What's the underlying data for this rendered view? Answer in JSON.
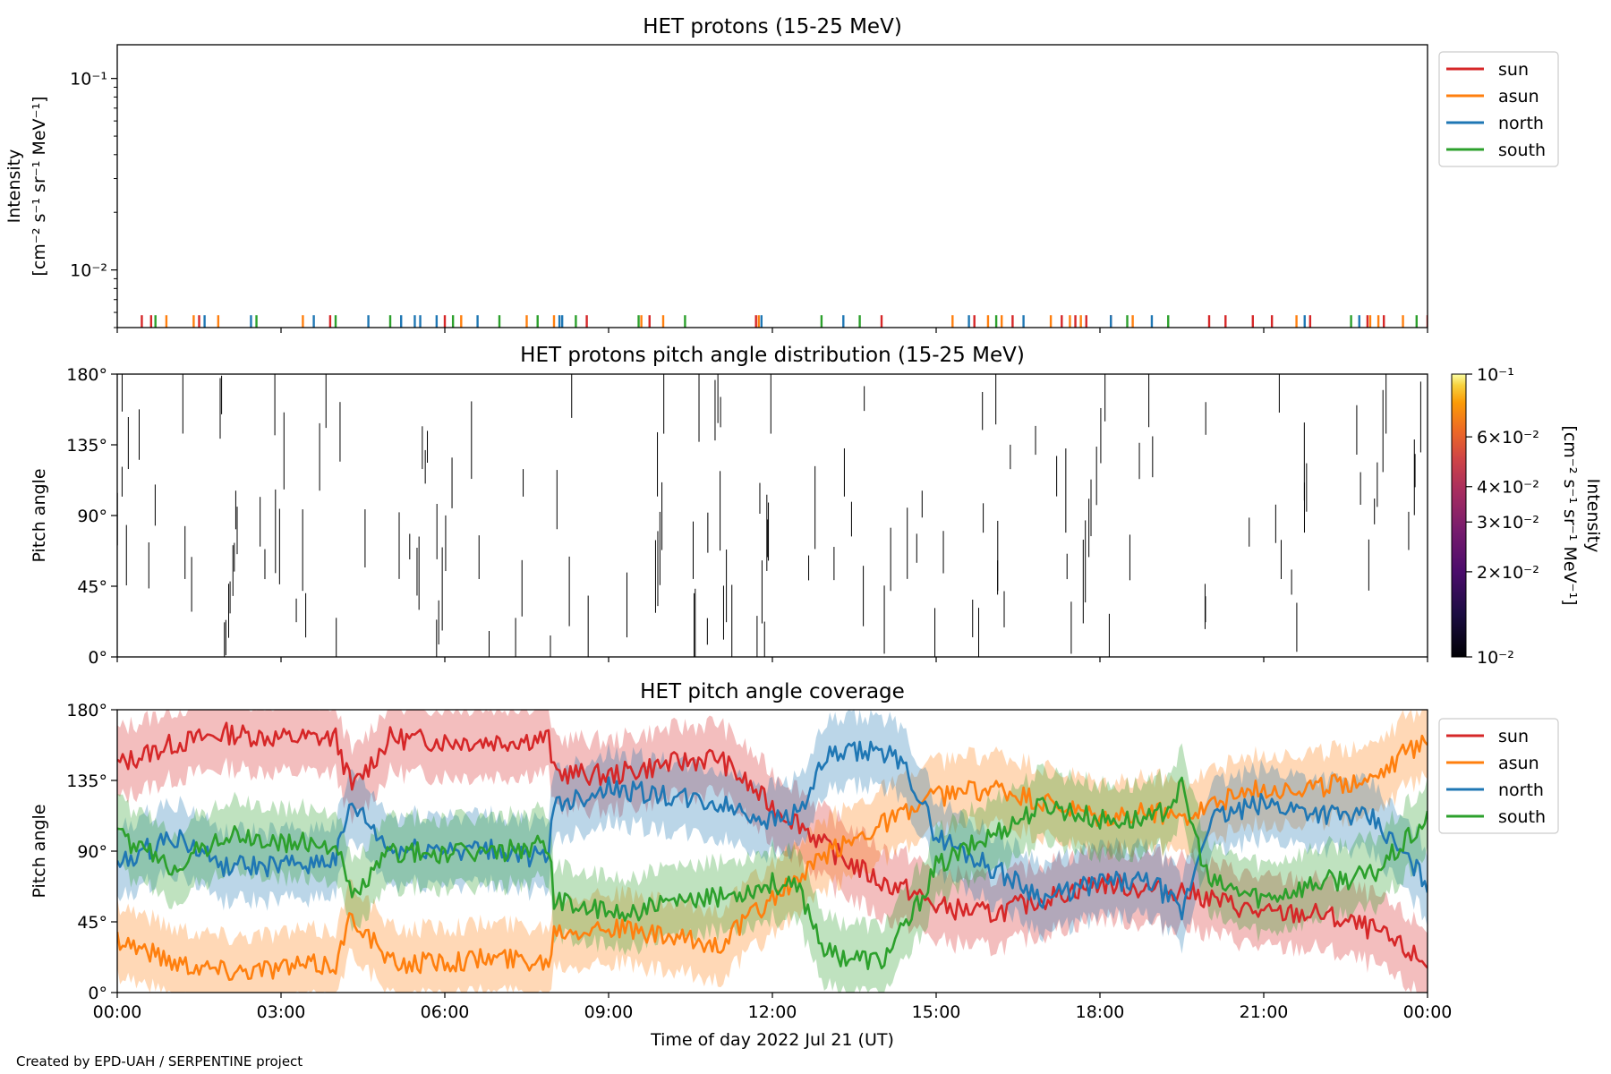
{
  "footer": {
    "credit": "Created by EPD-UAH / SERPENTINE project"
  },
  "colors": {
    "sun": "#d62728",
    "asun": "#ff7f0e",
    "north": "#1f77b4",
    "south": "#2ca02c"
  },
  "chart_data": [
    {
      "type": "line",
      "title": "HET protons (15-25 MeV)",
      "ylabel_line1": "Intensity",
      "ylabel_line2": "[cm⁻² s⁻¹ sr⁻¹ MeV⁻¹]",
      "yscale": "log",
      "ylim": [
        0.005,
        0.15
      ],
      "yticks": [
        {
          "value": 0.1,
          "label": "10⁻¹"
        },
        {
          "value": 0.01,
          "label": "10⁻²"
        }
      ],
      "legend": {
        "placement": "outside-right-top",
        "entries": [
          "sun",
          "asun",
          "north",
          "south"
        ]
      },
      "series": [
        {
          "name": "sun",
          "spikes_hours": [
            0.45,
            0.62,
            1.5,
            3.9,
            6.0,
            8.6,
            9.75,
            11.7,
            14.0,
            15.7,
            16.4,
            17.3,
            17.55,
            17.75,
            18.2,
            20.0,
            20.3,
            20.8,
            21.15,
            21.85,
            22.9,
            23.2,
            24.0
          ]
        },
        {
          "name": "asun",
          "spikes_hours": [
            0.9,
            1.4,
            1.85,
            3.4,
            6.3,
            7.5,
            8.0,
            9.6,
            10.0,
            11.75,
            15.3,
            15.95,
            16.2,
            17.1,
            17.45,
            17.65,
            18.6,
            21.6,
            22.95,
            23.1,
            23.55
          ]
        },
        {
          "name": "north",
          "spikes_hours": [
            1.6,
            2.45,
            3.6,
            4.6,
            5.2,
            5.45,
            5.55,
            5.85,
            6.6,
            8.1,
            8.15,
            11.8,
            13.3,
            15.6,
            16.6,
            18.2,
            18.95,
            21.75,
            22.75
          ]
        },
        {
          "name": "south",
          "spikes_hours": [
            0.7,
            2.55,
            4.0,
            5.0,
            6.15,
            7.0,
            7.7,
            8.4,
            9.55,
            10.4,
            12.9,
            13.6,
            16.1,
            18.5,
            19.25,
            22.6,
            23.8
          ]
        }
      ]
    },
    {
      "type": "heatmap",
      "title": "HET protons pitch angle distribution (15-25 MeV)",
      "ylabel": "Pitch angle",
      "ylim": [
        0,
        180
      ],
      "yticks": [
        "0°",
        "45°",
        "90°",
        "135°",
        "180°"
      ],
      "colorbar": {
        "label_line1": "Intensity",
        "label_line2": "[cm⁻² s⁻¹ sr⁻¹ MeV⁻¹]",
        "scale": "log",
        "range": [
          0.01,
          0.1
        ],
        "colormap": "inferno",
        "ticks": [
          {
            "value": 0.1,
            "label": "10⁻¹"
          },
          {
            "value": 0.06,
            "label": "6×10⁻²"
          },
          {
            "value": 0.04,
            "label": "4×10⁻²"
          },
          {
            "value": 0.03,
            "label": "3×10⁻²"
          },
          {
            "value": 0.02,
            "label": "2×10⁻²"
          },
          {
            "value": 0.01,
            "label": "10⁻²"
          }
        ]
      }
    },
    {
      "type": "area",
      "title": "HET pitch angle coverage",
      "ylabel": "Pitch angle",
      "xlabel": "Time of day 2022 Jul 21 (UT)",
      "ylim": [
        0,
        180
      ],
      "yticks": [
        "0°",
        "45°",
        "90°",
        "135°",
        "180°"
      ],
      "xlim_hours": [
        0,
        24
      ],
      "xticks": [
        "00:00",
        "03:00",
        "06:00",
        "09:00",
        "12:00",
        "15:00",
        "18:00",
        "21:00",
        "00:00"
      ],
      "legend": {
        "placement": "outside-right-top",
        "entries": [
          "sun",
          "asun",
          "north",
          "south"
        ]
      },
      "band_halfwidth_deg": 22,
      "series": [
        {
          "name": "sun",
          "points": [
            [
              0,
              145
            ],
            [
              1,
              158
            ],
            [
              2,
              165
            ],
            [
              3,
              162
            ],
            [
              4,
              162
            ],
            [
              4.3,
              130
            ],
            [
              5,
              162
            ],
            [
              6,
              160
            ],
            [
              7,
              160
            ],
            [
              7.9,
              162
            ],
            [
              8,
              140
            ],
            [
              9,
              138
            ],
            [
              10,
              145
            ],
            [
              11,
              150
            ],
            [
              12,
              118
            ],
            [
              12.5,
              108
            ],
            [
              13,
              92
            ],
            [
              14,
              70
            ],
            [
              14.5,
              65
            ],
            [
              15,
              55
            ],
            [
              16,
              50
            ],
            [
              17,
              60
            ],
            [
              18,
              70
            ],
            [
              19,
              65
            ],
            [
              19.5,
              65
            ],
            [
              20,
              60
            ],
            [
              21,
              50
            ],
            [
              22,
              50
            ],
            [
              23,
              40
            ],
            [
              24,
              18
            ]
          ]
        },
        {
          "name": "asun",
          "points": [
            [
              0,
              35
            ],
            [
              1,
              20
            ],
            [
              2,
              14
            ],
            [
              3,
              16
            ],
            [
              4,
              18
            ],
            [
              4.3,
              50
            ],
            [
              5,
              18
            ],
            [
              6,
              20
            ],
            [
              7,
              22
            ],
            [
              7.9,
              20
            ],
            [
              8,
              40
            ],
            [
              9,
              42
            ],
            [
              10,
              35
            ],
            [
              11,
              30
            ],
            [
              12,
              60
            ],
            [
              12.5,
              72
            ],
            [
              13,
              88
            ],
            [
              14,
              108
            ],
            [
              14.5,
              115
            ],
            [
              15,
              125
            ],
            [
              16,
              130
            ],
            [
              17,
              120
            ],
            [
              18,
              110
            ],
            [
              19,
              115
            ],
            [
              19.5,
              112
            ],
            [
              20,
              120
            ],
            [
              21,
              130
            ],
            [
              22,
              130
            ],
            [
              23,
              138
            ],
            [
              24,
              162
            ]
          ]
        },
        {
          "name": "north",
          "points": [
            [
              0,
              80
            ],
            [
              1,
              100
            ],
            [
              2,
              80
            ],
            [
              3,
              80
            ],
            [
              4,
              85
            ],
            [
              4.3,
              120
            ],
            [
              5,
              90
            ],
            [
              6,
              92
            ],
            [
              7,
              90
            ],
            [
              7.9,
              85
            ],
            [
              8,
              120
            ],
            [
              9,
              130
            ],
            [
              10,
              125
            ],
            [
              11,
              120
            ],
            [
              12,
              110
            ],
            [
              12.5,
              115
            ],
            [
              13,
              150
            ],
            [
              14,
              155
            ],
            [
              14.5,
              140
            ],
            [
              15,
              100
            ],
            [
              16,
              80
            ],
            [
              17,
              60
            ],
            [
              18,
              70
            ],
            [
              19,
              70
            ],
            [
              19.5,
              50
            ],
            [
              20,
              110
            ],
            [
              21,
              120
            ],
            [
              22,
              115
            ],
            [
              23,
              110
            ],
            [
              24,
              70
            ]
          ]
        },
        {
          "name": "south",
          "points": [
            [
              0,
              100
            ],
            [
              1,
              80
            ],
            [
              2,
              100
            ],
            [
              3,
              95
            ],
            [
              4,
              95
            ],
            [
              4.3,
              60
            ],
            [
              5,
              90
            ],
            [
              6,
              88
            ],
            [
              7,
              90
            ],
            [
              7.9,
              95
            ],
            [
              8,
              60
            ],
            [
              9,
              50
            ],
            [
              10,
              55
            ],
            [
              11,
              60
            ],
            [
              12,
              70
            ],
            [
              12.5,
              65
            ],
            [
              13,
              25
            ],
            [
              14,
              20
            ],
            [
              14.5,
              45
            ],
            [
              15,
              80
            ],
            [
              16,
              100
            ],
            [
              17,
              120
            ],
            [
              18,
              110
            ],
            [
              19,
              110
            ],
            [
              19.5,
              130
            ],
            [
              20,
              70
            ],
            [
              21,
              60
            ],
            [
              22,
              70
            ],
            [
              23,
              75
            ],
            [
              24,
              110
            ]
          ]
        }
      ]
    }
  ]
}
